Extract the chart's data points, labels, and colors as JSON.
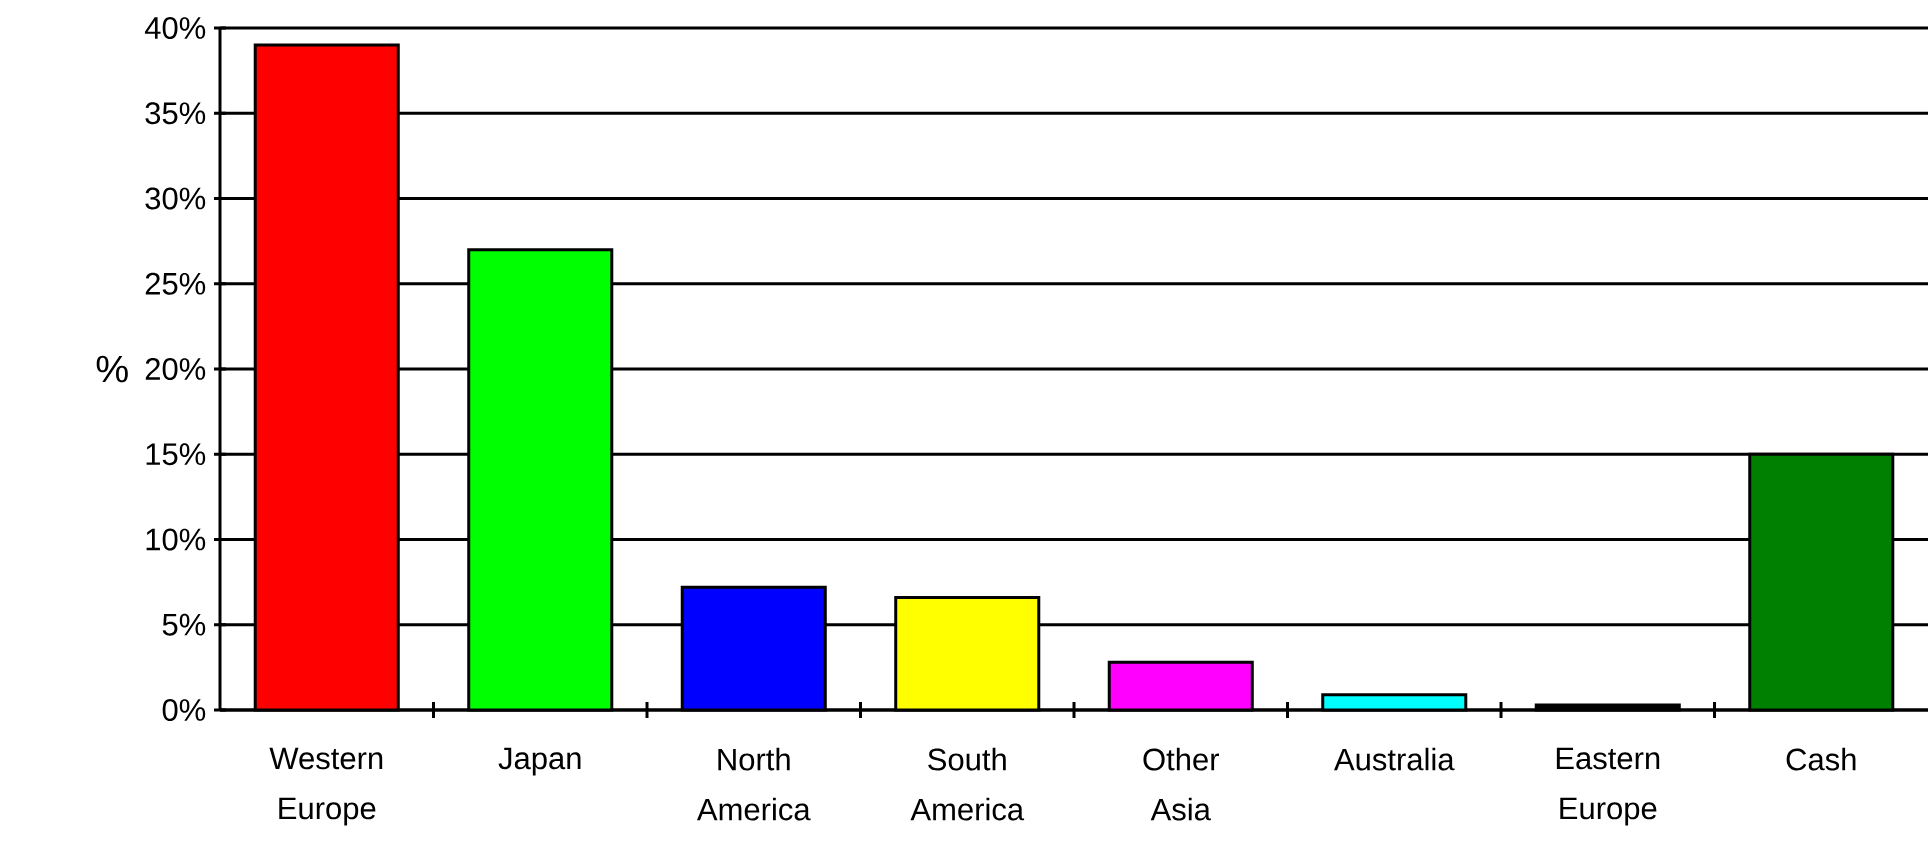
{
  "chart_data": {
    "type": "bar",
    "ylabel": "%",
    "categories": [
      "Western Europe",
      "Japan",
      "North America",
      "South America",
      "Other Asia",
      "Australia",
      "Eastern Europe",
      "Cash"
    ],
    "values": [
      39,
      27,
      7.2,
      6.6,
      2.8,
      0.9,
      0.3,
      15
    ],
    "colors": [
      "#ff0000",
      "#00ff00",
      "#0000ff",
      "#ffff00",
      "#ff00ff",
      "#00ffff",
      "#000000",
      "#008000"
    ],
    "ylim": [
      0,
      40
    ],
    "yticks": [
      {
        "value": 0,
        "label": "0%"
      },
      {
        "value": 5,
        "label": "5%"
      },
      {
        "value": 10,
        "label": "10%"
      },
      {
        "value": 15,
        "label": "15%"
      },
      {
        "value": 20,
        "label": "20%"
      },
      {
        "value": 25,
        "label": "25%"
      },
      {
        "value": 30,
        "label": "30%"
      },
      {
        "value": 35,
        "label": "35%"
      },
      {
        "value": 40,
        "label": "40%"
      }
    ],
    "grid": "y"
  }
}
